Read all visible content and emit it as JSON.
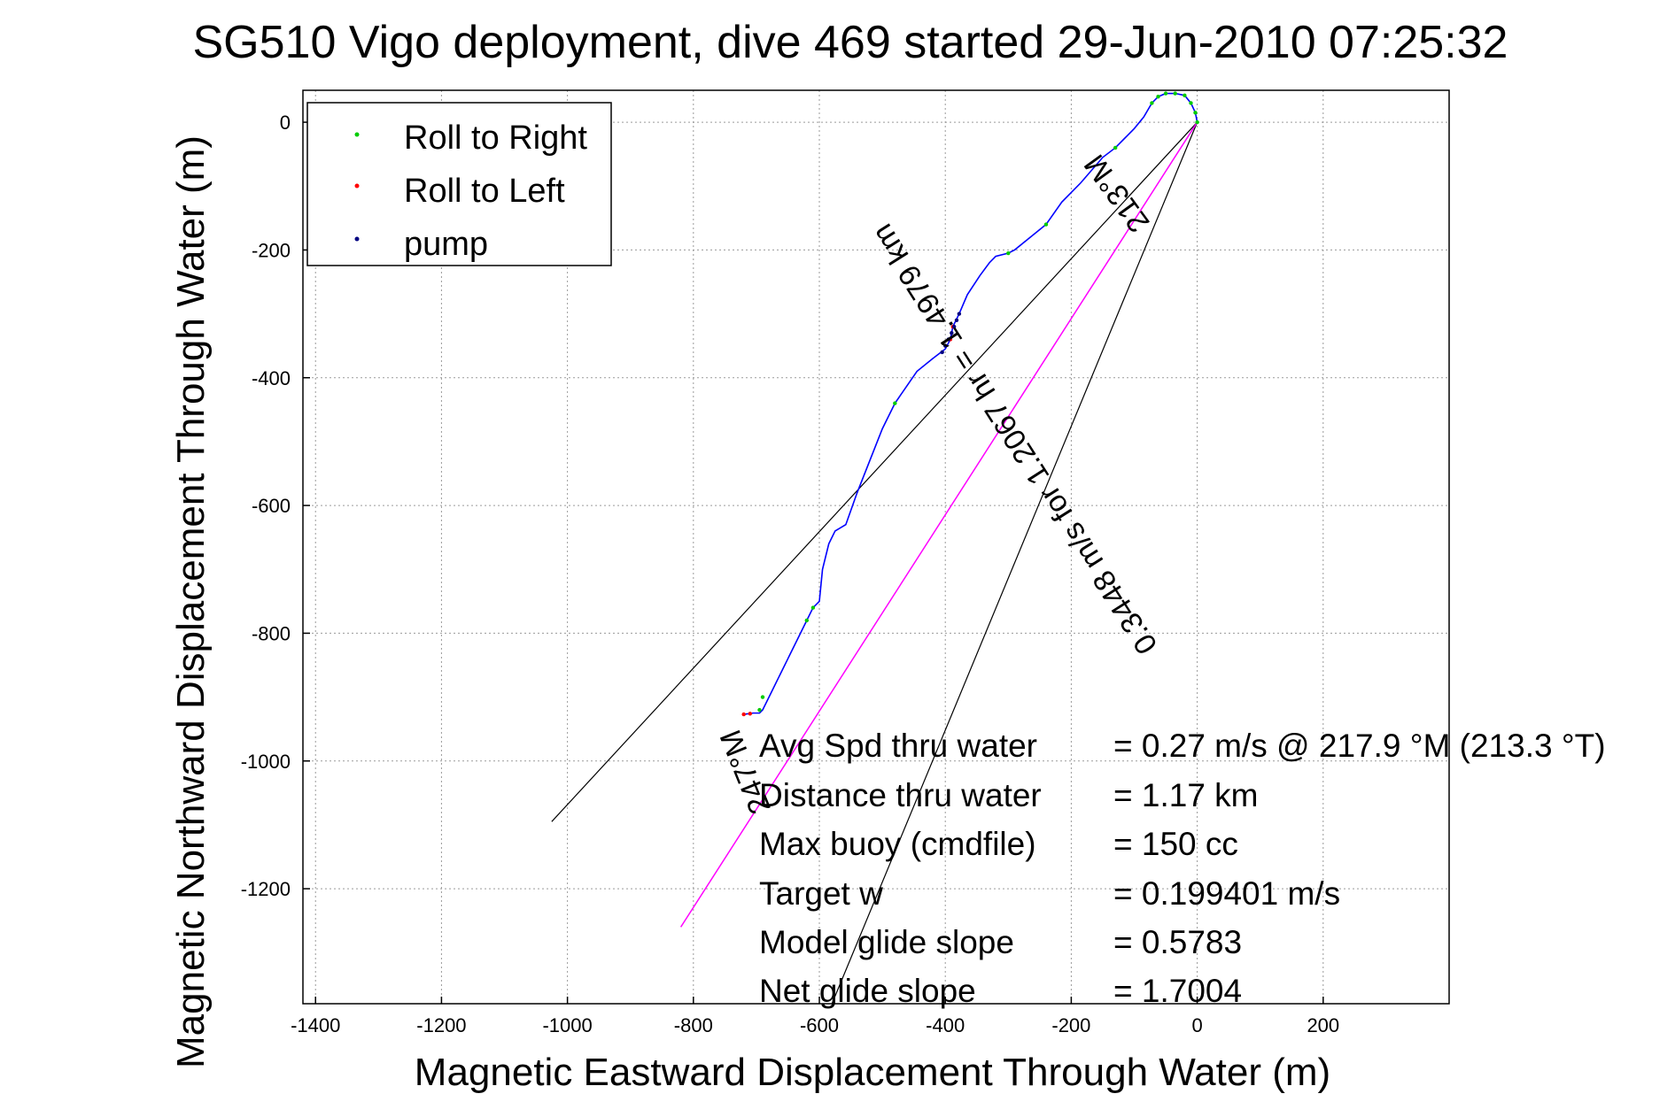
{
  "chart_data": {
    "type": "line",
    "title": "SG510 Vigo deployment, dive 469 started 29-Jun-2010 07:25:32",
    "xlabel": "Magnetic Eastward Displacement Through Water (m)",
    "ylabel": "Magnetic Northward Displacement Through Water (m)",
    "xlim": [
      -1420,
      400
    ],
    "ylim": [
      -1380,
      50
    ],
    "xticks": [
      -1400,
      -1200,
      -1000,
      -800,
      -600,
      -400,
      -200,
      0,
      200
    ],
    "yticks": [
      0,
      -200,
      -400,
      -600,
      -800,
      -1000,
      -1200
    ],
    "grid": true,
    "legend_position": "top-left",
    "legend": [
      "Roll to Right",
      "Roll to Left",
      "pump"
    ],
    "colors": {
      "track": "#0000ff",
      "roll_right": "#00cc00",
      "roll_left": "#ff0000",
      "pump": "#000080",
      "course": "#ff00ff",
      "ray": "#000000"
    },
    "series": [
      {
        "name": "track",
        "x": [
          0,
          -3,
          -10,
          -20,
          -35,
          -50,
          -62,
          -72,
          -85,
          -100,
          -130,
          -150,
          -185,
          -215,
          -240,
          -265,
          -290,
          -300,
          -320,
          -330,
          -345,
          -365,
          -378,
          -388,
          -392,
          -400,
          -420,
          -445,
          -480,
          -500,
          -520,
          -540,
          -558,
          -575,
          -585,
          -595,
          -600,
          -610,
          -620,
          -640,
          -650,
          -665,
          -680,
          -690,
          -695,
          -705,
          -720
        ],
        "y": [
          0,
          15,
          30,
          42,
          45,
          45,
          40,
          30,
          8,
          -10,
          -40,
          -55,
          -95,
          -125,
          -160,
          -180,
          -200,
          -205,
          -210,
          -220,
          -240,
          -270,
          -300,
          -320,
          -340,
          -355,
          -370,
          -390,
          -440,
          -480,
          -530,
          -580,
          -630,
          -640,
          -660,
          -700,
          -750,
          -760,
          -780,
          -820,
          -840,
          -870,
          -900,
          -920,
          -925,
          -925,
          -927
        ]
      },
      {
        "name": "Roll to Right",
        "x": [
          -72,
          -62,
          -50,
          -35,
          -20,
          -10,
          -3,
          0,
          -130,
          -240,
          -300,
          -480,
          -610,
          -620,
          -690,
          -695
        ],
        "y": [
          30,
          40,
          45,
          45,
          42,
          30,
          15,
          0,
          -40,
          -160,
          -205,
          -440,
          -760,
          -780,
          -900,
          -920
        ]
      },
      {
        "name": "Roll to Left",
        "x": [
          -388,
          -392,
          -720,
          -710
        ],
        "y": [
          -320,
          -340,
          -927,
          -926
        ]
      },
      {
        "name": "pump",
        "x": [
          -378,
          -382,
          -386,
          -390,
          -395,
          -400,
          -405
        ],
        "y": [
          -300,
          -310,
          -320,
          -330,
          -340,
          -350,
          -360
        ]
      }
    ],
    "course_line": {
      "x": [
        0,
        -820
      ],
      "y": [
        0,
        -1260
      ]
    },
    "rays": [
      {
        "x": [
          0,
          -1025
        ],
        "y": [
          0,
          -1095
        ]
      },
      {
        "x": [
          0,
          -580
        ],
        "y": [
          0,
          -1380
        ]
      }
    ],
    "annotations": {
      "heading_a": "213°M",
      "course": "0.3448 m/s for 1.2067 hr = 1.4979 km",
      "heading_b": "247°M"
    },
    "stats": [
      {
        "label": "Avg Spd thru water",
        "value": "=  0.27 m/s @ 217.9 °M (213.3 °T)"
      },
      {
        "label": "Distance thru water",
        "value": "=  1.17 km"
      },
      {
        "label": "Max buoy (cmdfile)",
        "value": "= 150 cc"
      },
      {
        "label": "Target w",
        "value": "= 0.199401 m/s"
      },
      {
        "label": "Model glide slope",
        "value": "= 0.5783"
      },
      {
        "label": "Net glide slope",
        "value": "= 1.7004"
      }
    ]
  }
}
